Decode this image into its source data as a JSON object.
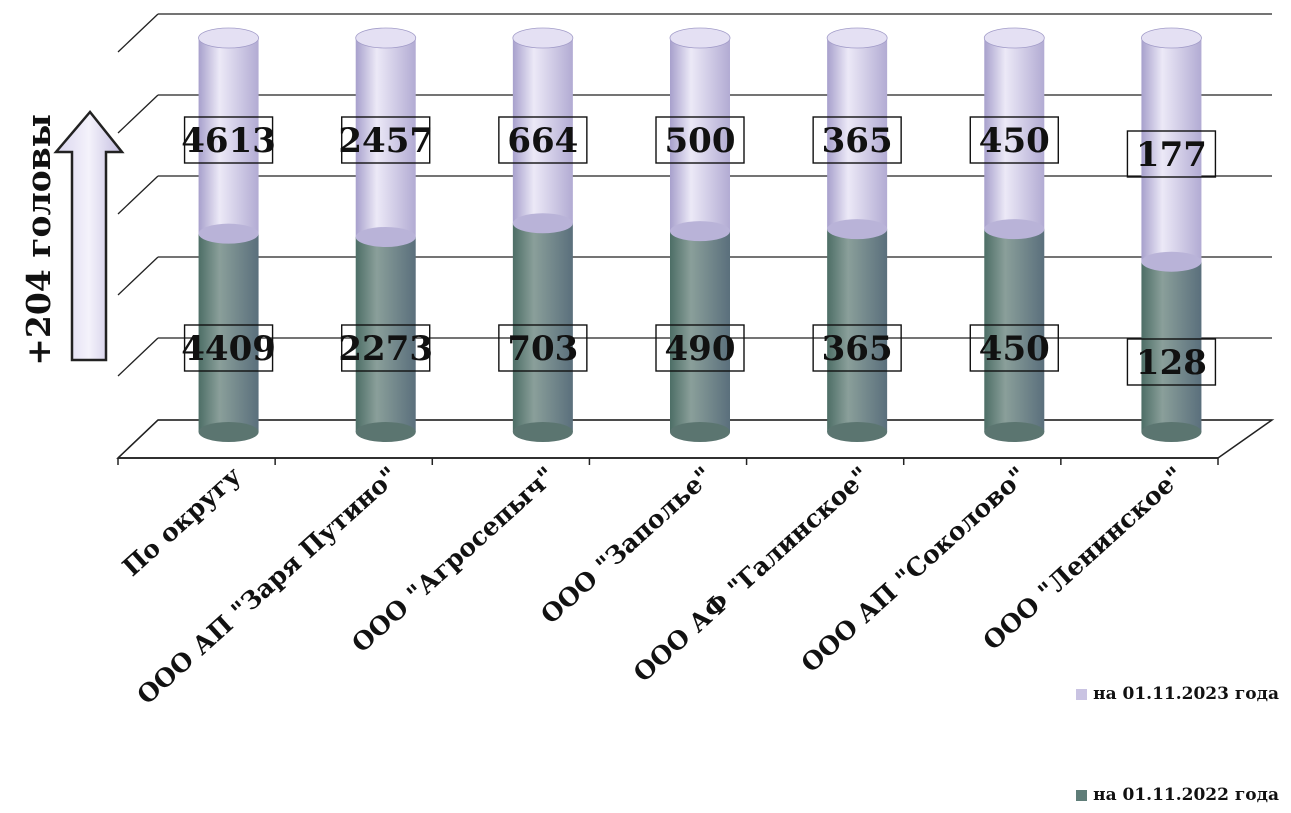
{
  "chart_data": {
    "type": "bar",
    "categories": [
      "По округу",
      "ООО АП \"Заря Путино\"",
      "ООО \"Агросепыч\"",
      "ООО \"Заполье\"",
      "ООО АФ \"Галинское\"",
      "ООО АП \"Соколово\"",
      "ООО \"Ленинское\""
    ],
    "series": [
      {
        "name": "на 01.11.2022 года",
        "values": [
          4409,
          2273,
          703,
          490,
          365,
          450,
          128
        ],
        "color": "#5f7d78"
      },
      {
        "name": "на 01.11.2023 года",
        "values": [
          4613,
          2457,
          664,
          500,
          365,
          450,
          177
        ],
        "color": "#c9c3e2"
      }
    ],
    "annotation": "+204 головы",
    "stacked": true,
    "grid": true
  },
  "legend": {
    "label_2023": "на 01.11.2023 года",
    "label_2022": "на 01.11.2022 года"
  }
}
